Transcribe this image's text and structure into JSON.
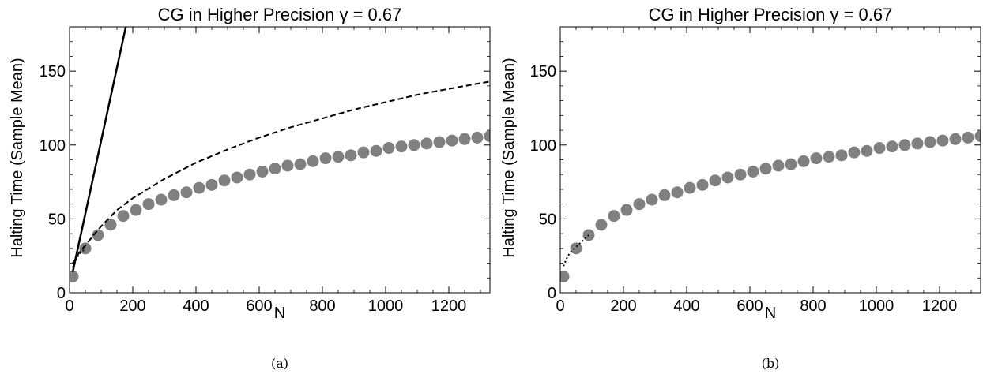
{
  "chart_data": [
    {
      "type": "scatter",
      "title": "CG in Higher Precision γ = 0.67",
      "xlabel": "N",
      "ylabel": "Halting Time (Sample Mean)",
      "caption": "(a)",
      "xlim": [
        0,
        1330
      ],
      "ylim": [
        0,
        180
      ],
      "xticks": [
        0,
        200,
        400,
        600,
        800,
        1000,
        1200
      ],
      "yticks": [
        0,
        50,
        100,
        150
      ],
      "grid": false,
      "legend": "none",
      "series": [
        {
          "style": "markers",
          "color": "#808080",
          "x": [
            10,
            50,
            90,
            130,
            170,
            210,
            250,
            290,
            330,
            370,
            410,
            450,
            490,
            530,
            570,
            610,
            650,
            690,
            730,
            770,
            810,
            850,
            890,
            930,
            970,
            1010,
            1050,
            1090,
            1130,
            1170,
            1210,
            1250,
            1290,
            1330
          ],
          "y": [
            11,
            30,
            39,
            46,
            52,
            56,
            60,
            63,
            66,
            68,
            71,
            73,
            76,
            78,
            80,
            82,
            84,
            86,
            87,
            89,
            91,
            92,
            93,
            95,
            96,
            98,
            99,
            100,
            101,
            102,
            103,
            104,
            105,
            106
          ]
        },
        {
          "style": "dotted",
          "color": "#000000",
          "x": [
            10,
            20,
            30,
            40,
            50
          ],
          "y": [
            17,
            22,
            26,
            28,
            30
          ]
        },
        {
          "style": "dashed",
          "color": "#000000",
          "x": [
            10,
            20,
            30,
            50,
            80,
            100,
            150,
            200,
            300,
            400,
            500,
            600,
            700,
            800,
            900,
            1000,
            1100,
            1200,
            1330
          ],
          "y": [
            20,
            23,
            27,
            32,
            40,
            45,
            56,
            64,
            77,
            88,
            97,
            105,
            112,
            118,
            124,
            129,
            134,
            138,
            143
          ]
        },
        {
          "style": "solid",
          "color": "#000000",
          "x": [
            10,
            178
          ],
          "y": [
            14,
            180
          ]
        }
      ]
    },
    {
      "type": "scatter",
      "title": "CG in Higher Precision γ = 0.67",
      "xlabel": "N",
      "ylabel": "Halting Time (Sample Mean)",
      "caption": "(b)",
      "xlim": [
        0,
        1330
      ],
      "ylim": [
        0,
        180
      ],
      "xticks": [
        0,
        200,
        400,
        600,
        800,
        1000,
        1200
      ],
      "yticks": [
        0,
        50,
        100,
        150
      ],
      "grid": false,
      "legend": "none",
      "series": [
        {
          "style": "markers",
          "color": "#808080",
          "x": [
            10,
            50,
            90,
            130,
            170,
            210,
            250,
            290,
            330,
            370,
            410,
            450,
            490,
            530,
            570,
            610,
            650,
            690,
            730,
            770,
            810,
            850,
            890,
            930,
            970,
            1010,
            1050,
            1090,
            1130,
            1170,
            1210,
            1250,
            1290,
            1330
          ],
          "y": [
            11,
            30,
            39,
            46,
            52,
            56,
            60,
            63,
            66,
            68,
            71,
            73,
            76,
            78,
            80,
            82,
            84,
            86,
            87,
            89,
            91,
            92,
            93,
            95,
            96,
            98,
            99,
            100,
            101,
            102,
            103,
            104,
            105,
            106
          ]
        },
        {
          "style": "dotted",
          "color": "#000000",
          "x": [
            10,
            20,
            30,
            40,
            50,
            70,
            90
          ],
          "y": [
            18,
            23,
            27,
            29,
            31,
            35,
            39
          ]
        }
      ]
    }
  ]
}
